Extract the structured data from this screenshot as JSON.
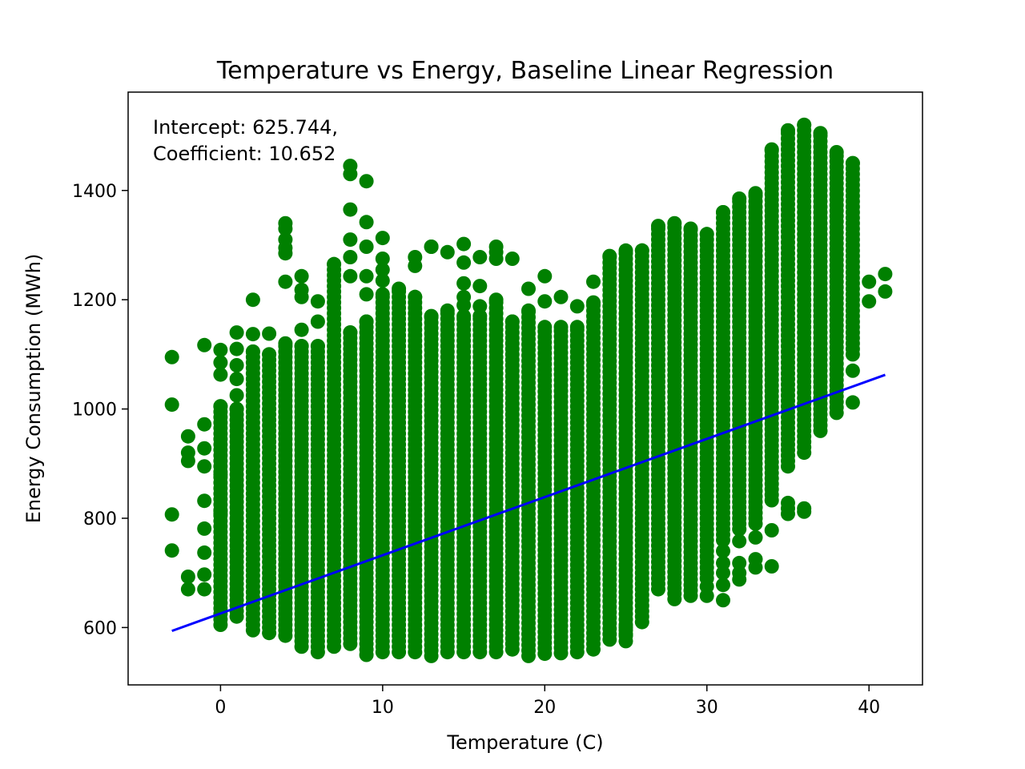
{
  "chart_data": {
    "type": "scatter",
    "title": "Temperature vs Energy, Baseline Linear Regression",
    "xlabel": "Temperature (C)",
    "ylabel": "Energy Consumption (MWh)",
    "xlim": [
      -5.7,
      43.3
    ],
    "ylim": [
      495,
      1580
    ],
    "xticks": [
      0,
      10,
      20,
      30,
      40
    ],
    "yticks": [
      600,
      800,
      1000,
      1200,
      1400
    ],
    "annotation": {
      "line1": "Intercept: 625.744,",
      "line2": "Coefficient: 10.652"
    },
    "regression": {
      "intercept": 625.744,
      "coefficient": 10.652,
      "x_range": [
        -3,
        41
      ]
    },
    "grid": false,
    "colors": {
      "points": "#008000",
      "line": "#0000ff"
    },
    "columns": [
      {
        "x": -3,
        "min": null,
        "max": null,
        "points": [
          1095,
          1008,
          807,
          741
        ]
      },
      {
        "x": -2,
        "min": null,
        "max": null,
        "points": [
          950,
          920,
          905,
          693,
          670
        ]
      },
      {
        "x": -1,
        "min": null,
        "max": null,
        "points": [
          1117,
          972,
          928,
          895,
          832,
          781,
          737,
          697,
          670
        ]
      },
      {
        "x": 0,
        "min": 605,
        "max": 1005,
        "points": [
          1108,
          1085,
          1063,
          880,
          813,
          808
        ]
      },
      {
        "x": 1,
        "min": 620,
        "max": 1000,
        "points": [
          1140,
          1110,
          1080,
          1055,
          1025
        ]
      },
      {
        "x": 2,
        "min": 595,
        "max": 1105,
        "points": [
          1200,
          1137
        ]
      },
      {
        "x": 3,
        "min": 590,
        "max": 1100,
        "points": [
          1138
        ]
      },
      {
        "x": 4,
        "min": 585,
        "max": 1120,
        "points": [
          1340,
          1330,
          1310,
          1295,
          1285,
          1233
        ]
      },
      {
        "x": 5,
        "min": 565,
        "max": 1115,
        "points": [
          1243,
          1218,
          1205,
          1145
        ]
      },
      {
        "x": 6,
        "min": 555,
        "max": 1115,
        "points": [
          1197,
          1160
        ]
      },
      {
        "x": 7,
        "min": 565,
        "max": 1265,
        "points": []
      },
      {
        "x": 8,
        "min": 570,
        "max": 1140,
        "points": [
          1445,
          1430,
          1365,
          1310,
          1278,
          1243
        ]
      },
      {
        "x": 9,
        "min": 550,
        "max": 1160,
        "points": [
          1417,
          1342,
          1297,
          1243,
          1210
        ]
      },
      {
        "x": 10,
        "min": 555,
        "max": 1210,
        "points": [
          1313,
          1275,
          1255,
          1235
        ]
      },
      {
        "x": 11,
        "min": 555,
        "max": 1220,
        "points": []
      },
      {
        "x": 12,
        "min": 555,
        "max": 1205,
        "points": [
          1278,
          1262
        ]
      },
      {
        "x": 13,
        "min": 548,
        "max": 1170,
        "points": [
          1297,
          1297
        ]
      },
      {
        "x": 14,
        "min": 555,
        "max": 1180,
        "points": [
          1287
        ]
      },
      {
        "x": 15,
        "min": 555,
        "max": 1170,
        "points": [
          1302,
          1268,
          1230,
          1205,
          1190
        ]
      },
      {
        "x": 16,
        "min": 555,
        "max": 1170,
        "points": [
          1278,
          1225,
          1188
        ]
      },
      {
        "x": 17,
        "min": 555,
        "max": 1200,
        "points": [
          1297,
          1287,
          1275
        ]
      },
      {
        "x": 18,
        "min": 560,
        "max": 1160,
        "points": [
          1275
        ]
      },
      {
        "x": 19,
        "min": 548,
        "max": 1180,
        "points": [
          1220
        ]
      },
      {
        "x": 20,
        "min": 552,
        "max": 1150,
        "points": [
          1243,
          1197
        ]
      },
      {
        "x": 21,
        "min": 553,
        "max": 1150,
        "points": [
          1205
        ]
      },
      {
        "x": 22,
        "min": 555,
        "max": 1150,
        "points": [
          1188
        ]
      },
      {
        "x": 23,
        "min": 560,
        "max": 1195,
        "points": [
          1233
        ]
      },
      {
        "x": 24,
        "min": 578,
        "max": 1280,
        "points": []
      },
      {
        "x": 25,
        "min": 575,
        "max": 1290,
        "points": [
          600,
          588
        ]
      },
      {
        "x": 26,
        "min": 610,
        "max": 1290,
        "points": []
      },
      {
        "x": 27,
        "min": 670,
        "max": 1335,
        "points": []
      },
      {
        "x": 28,
        "min": 652,
        "max": 1340,
        "points": []
      },
      {
        "x": 29,
        "min": 658,
        "max": 1330,
        "points": []
      },
      {
        "x": 30,
        "min": 690,
        "max": 1320,
        "points": [
          675,
          658
        ]
      },
      {
        "x": 31,
        "min": 760,
        "max": 1360,
        "points": [
          740,
          718,
          700,
          678,
          650
        ]
      },
      {
        "x": 32,
        "min": 780,
        "max": 1385,
        "points": [
          758,
          718,
          700,
          688
        ]
      },
      {
        "x": 33,
        "min": 790,
        "max": 1395,
        "points": [
          765,
          725,
          710
        ]
      },
      {
        "x": 34,
        "min": 833,
        "max": 1475,
        "points": [
          778,
          712
        ]
      },
      {
        "x": 35,
        "min": 895,
        "max": 1510,
        "points": [
          828,
          818,
          808
        ]
      },
      {
        "x": 36,
        "min": 920,
        "max": 1520,
        "points": [
          818,
          812
        ]
      },
      {
        "x": 37,
        "min": 960,
        "max": 1505,
        "points": []
      },
      {
        "x": 38,
        "min": 993,
        "max": 1470,
        "points": []
      },
      {
        "x": 39,
        "min": 1100,
        "max": 1450,
        "points": [
          1070,
          1012
        ]
      },
      {
        "x": 40,
        "min": null,
        "max": null,
        "points": [
          1233,
          1197
        ]
      },
      {
        "x": 41,
        "min": null,
        "max": null,
        "points": [
          1247,
          1215
        ]
      }
    ]
  }
}
